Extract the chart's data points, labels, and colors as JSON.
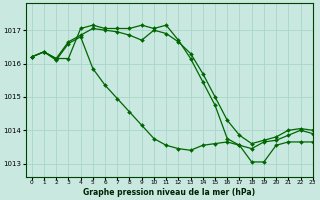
{
  "background_color": "#c8e8e0",
  "grid_color": "#a8d4cc",
  "line_color": "#006600",
  "marker": "D",
  "markersize": 2.0,
  "linewidth": 0.9,
  "ylim": [
    1012.6,
    1017.8
  ],
  "xlim": [
    -0.5,
    23
  ],
  "yticks": [
    1013,
    1014,
    1015,
    1016,
    1017
  ],
  "xticks": [
    0,
    1,
    2,
    3,
    4,
    5,
    6,
    7,
    8,
    9,
    10,
    11,
    12,
    13,
    14,
    15,
    16,
    17,
    18,
    19,
    20,
    21,
    22,
    23
  ],
  "xlabel": "Graphe pression niveau de la mer (hPa)",
  "s1": [
    1016.2,
    1016.35,
    1016.15,
    1016.65,
    1016.85,
    1017.05,
    1017.0,
    1016.95,
    1016.85,
    1016.7,
    1017.0,
    1016.9,
    1016.65,
    1016.3,
    1015.7,
    1015.0,
    1014.3,
    1013.85,
    1013.6,
    1013.7,
    1013.8,
    1014.0,
    1014.05,
    1014.0
  ],
  "s2": [
    1016.2,
    1016.35,
    1016.15,
    1016.15,
    1017.05,
    1017.15,
    1017.05,
    1017.05,
    1017.05,
    1017.15,
    1017.05,
    1017.15,
    1016.7,
    1016.15,
    1015.45,
    1014.75,
    1013.75,
    1013.55,
    1013.05,
    1013.05,
    1013.55,
    1013.65,
    1013.65,
    1013.65
  ],
  "s3": [
    1016.2,
    1016.35,
    1016.1,
    1016.6,
    1016.8,
    1015.85,
    1015.35,
    1014.95,
    1014.55,
    1014.15,
    1013.75,
    1013.55,
    1013.45,
    1013.4,
    1013.55,
    1013.6,
    1013.65,
    1013.55,
    1013.45,
    1013.65,
    1013.7,
    1013.85,
    1014.0,
    1013.9
  ]
}
